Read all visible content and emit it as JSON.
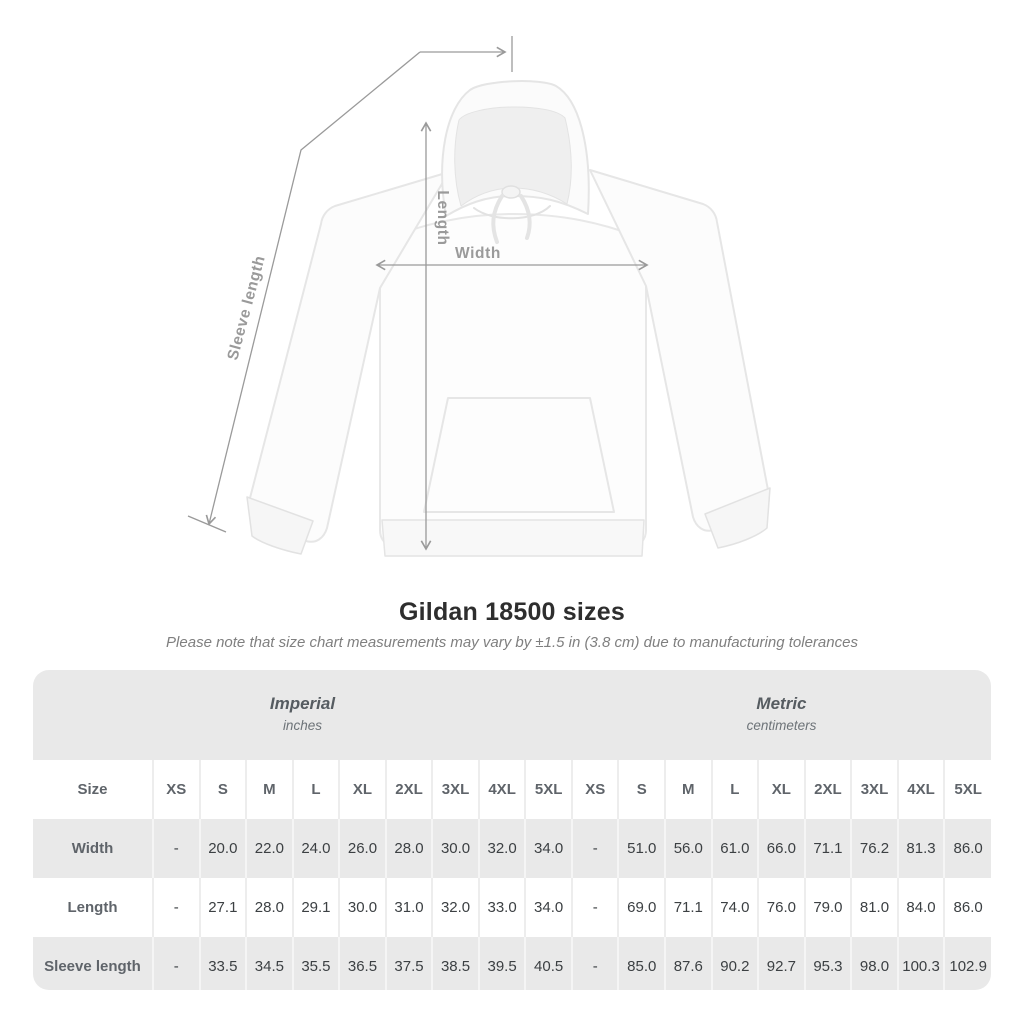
{
  "title": "Gildan 18500 sizes",
  "note": "Please note that size chart measurements may vary by ±1.5 in (3.8 cm) due to manufacturing tolerances",
  "diagram": {
    "sleeve_label": "Sleeve length",
    "length_label": "Length",
    "width_label": "Width"
  },
  "table": {
    "size_header": "Size",
    "groups": [
      {
        "label": "Imperial",
        "sublabel": "inches"
      },
      {
        "label": "Metric",
        "sublabel": "centimeters"
      }
    ],
    "sizes": [
      "XS",
      "S",
      "M",
      "L",
      "XL",
      "2XL",
      "3XL",
      "4XL",
      "5XL"
    ],
    "rows": [
      {
        "label": "Width",
        "imperial": [
          "-",
          "20.0",
          "22.0",
          "24.0",
          "26.0",
          "28.0",
          "30.0",
          "32.0",
          "34.0"
        ],
        "metric": [
          "-",
          "51.0",
          "56.0",
          "61.0",
          "66.0",
          "71.1",
          "76.2",
          "81.3",
          "86.0"
        ]
      },
      {
        "label": "Length",
        "imperial": [
          "-",
          "27.1",
          "28.0",
          "29.1",
          "30.0",
          "31.0",
          "32.0",
          "33.0",
          "34.0"
        ],
        "metric": [
          "-",
          "69.0",
          "71.1",
          "74.0",
          "76.0",
          "79.0",
          "81.0",
          "84.0",
          "86.0"
        ]
      },
      {
        "label": "Sleeve length",
        "imperial": [
          "-",
          "33.5",
          "34.5",
          "35.5",
          "36.5",
          "37.5",
          "38.5",
          "39.5",
          "40.5"
        ],
        "metric": [
          "-",
          "85.0",
          "87.6",
          "90.2",
          "92.7",
          "95.3",
          "98.0",
          "100.3",
          "102.9"
        ]
      }
    ]
  },
  "chart_data": {
    "type": "table",
    "title": "Gildan 18500 sizes",
    "note": "Please note that size chart measurements may vary by ±1.5 in (3.8 cm) due to manufacturing tolerances",
    "units": {
      "imperial": "inches",
      "metric": "centimeters"
    },
    "sizes": [
      "XS",
      "S",
      "M",
      "L",
      "XL",
      "2XL",
      "3XL",
      "4XL",
      "5XL"
    ],
    "series": [
      {
        "name": "Width (inches)",
        "values": [
          null,
          20.0,
          22.0,
          24.0,
          26.0,
          28.0,
          30.0,
          32.0,
          34.0
        ]
      },
      {
        "name": "Length (inches)",
        "values": [
          null,
          27.1,
          28.0,
          29.1,
          30.0,
          31.0,
          32.0,
          33.0,
          34.0
        ]
      },
      {
        "name": "Sleeve length (inches)",
        "values": [
          null,
          33.5,
          34.5,
          35.5,
          36.5,
          37.5,
          38.5,
          39.5,
          40.5
        ]
      },
      {
        "name": "Width (cm)",
        "values": [
          null,
          51.0,
          56.0,
          61.0,
          66.0,
          71.1,
          76.2,
          81.3,
          86.0
        ]
      },
      {
        "name": "Length (cm)",
        "values": [
          null,
          69.0,
          71.1,
          74.0,
          76.0,
          79.0,
          81.0,
          84.0,
          86.0
        ]
      },
      {
        "name": "Sleeve length (cm)",
        "values": [
          null,
          85.0,
          87.6,
          90.2,
          92.7,
          95.3,
          98.0,
          100.3,
          102.9
        ]
      }
    ],
    "colors": {
      "row_alt_bg": "#e9e9e9",
      "measure_line": "#9a9a9a",
      "value_text": "#3c4043",
      "header_text": "#5f646a"
    }
  }
}
